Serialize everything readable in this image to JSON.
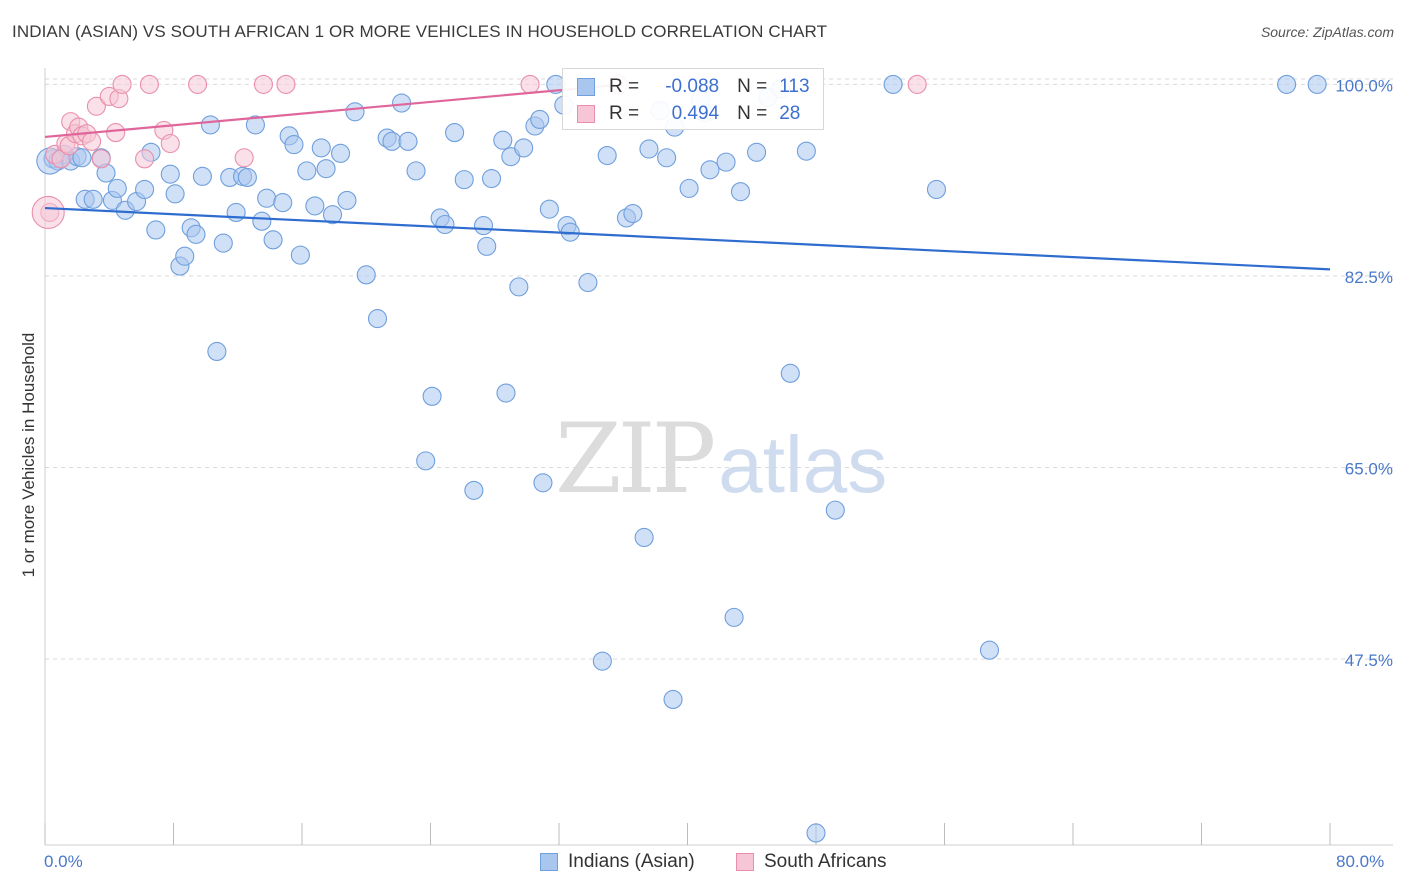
{
  "title": "INDIAN (ASIAN) VS SOUTH AFRICAN 1 OR MORE VEHICLES IN HOUSEHOLD CORRELATION CHART",
  "source": "Source: ZipAtlas.com",
  "watermark": {
    "zip": "ZIP",
    "atlas": "atlas"
  },
  "colors": {
    "blue_fill": "#a9c6ef",
    "blue_stroke": "#6f9fdd",
    "blue_line": "#2e6ccf",
    "pink_fill": "#f6c6d6",
    "pink_stroke": "#ea8fab",
    "pink_line": "#e0659a",
    "grid": "#d9d9d9",
    "axis_text": "#4a78c9"
  },
  "legend": {
    "rows": [
      {
        "r_label": "R =",
        "r_value": "-0.088",
        "n_label": "N =",
        "n_value": "113"
      },
      {
        "r_label": "R =",
        "r_value": "0.494",
        "n_label": "N =",
        "n_value": "28"
      }
    ]
  },
  "bottom_legend": {
    "series1": "Indians (Asian)",
    "series2": "South Africans"
  },
  "chart_data": {
    "type": "scatter",
    "title": "INDIAN (ASIAN) VS SOUTH AFRICAN 1 OR MORE VEHICLES IN HOUSEHOLD CORRELATION CHART",
    "xlabel": "",
    "ylabel": "1 or more Vehicles in Household",
    "xlim": [
      0,
      80
    ],
    "ylim": [
      30.5,
      101.5
    ],
    "x_tick_labels": [
      "0.0%",
      "80.0%"
    ],
    "y_ticks": [
      {
        "value": 100.0,
        "label": "100.0%"
      },
      {
        "value": 82.5,
        "label": "82.5%"
      },
      {
        "value": 65.0,
        "label": "65.0%"
      },
      {
        "value": 47.5,
        "label": "47.5%"
      }
    ],
    "grid": true,
    "series": [
      {
        "name": "Indians (Asian)",
        "color": "#6f9fdd",
        "r": -0.088,
        "n": 113,
        "trend": {
          "x": [
            0,
            80
          ],
          "y": [
            88.7,
            83.1
          ]
        },
        "points": [
          [
            0.5,
            93.2
          ],
          [
            0.8,
            93.0
          ],
          [
            1.2,
            93.6
          ],
          [
            1.6,
            93.0
          ],
          [
            2.0,
            93.4
          ],
          [
            2.3,
            93.3
          ],
          [
            2.5,
            89.5
          ],
          [
            3.0,
            89.5
          ],
          [
            3.5,
            93.3
          ],
          [
            3.8,
            91.9
          ],
          [
            4.2,
            89.4
          ],
          [
            4.5,
            90.5
          ],
          [
            5.0,
            88.5
          ],
          [
            5.7,
            89.3
          ],
          [
            6.2,
            90.4
          ],
          [
            6.6,
            93.8
          ],
          [
            6.9,
            86.7
          ],
          [
            7.8,
            91.8
          ],
          [
            8.1,
            90.0
          ],
          [
            8.4,
            83.4
          ],
          [
            8.7,
            84.3
          ],
          [
            9.1,
            86.9
          ],
          [
            9.4,
            86.3
          ],
          [
            9.8,
            91.6
          ],
          [
            10.3,
            96.3
          ],
          [
            10.7,
            75.6
          ],
          [
            11.1,
            85.5
          ],
          [
            11.5,
            91.5
          ],
          [
            11.9,
            88.3
          ],
          [
            12.3,
            91.6
          ],
          [
            12.6,
            91.5
          ],
          [
            13.1,
            96.3
          ],
          [
            13.5,
            87.5
          ],
          [
            13.8,
            89.6
          ],
          [
            14.2,
            85.8
          ],
          [
            14.8,
            89.2
          ],
          [
            15.2,
            95.3
          ],
          [
            15.5,
            94.5
          ],
          [
            15.9,
            84.4
          ],
          [
            16.3,
            92.1
          ],
          [
            16.8,
            88.9
          ],
          [
            17.2,
            94.2
          ],
          [
            17.5,
            92.3
          ],
          [
            17.9,
            88.1
          ],
          [
            18.4,
            93.7
          ],
          [
            18.8,
            89.4
          ],
          [
            19.3,
            97.5
          ],
          [
            20.0,
            82.6
          ],
          [
            20.7,
            78.6
          ],
          [
            21.3,
            95.1
          ],
          [
            21.6,
            94.8
          ],
          [
            22.2,
            98.3
          ],
          [
            22.6,
            94.8
          ],
          [
            23.1,
            92.1
          ],
          [
            23.7,
            65.6
          ],
          [
            24.1,
            71.5
          ],
          [
            24.6,
            87.8
          ],
          [
            24.9,
            87.2
          ],
          [
            25.5,
            95.6
          ],
          [
            26.1,
            91.3
          ],
          [
            26.7,
            62.9
          ],
          [
            27.3,
            87.1
          ],
          [
            27.5,
            85.2
          ],
          [
            27.8,
            91.4
          ],
          [
            28.5,
            94.9
          ],
          [
            28.7,
            71.8
          ],
          [
            29.0,
            93.4
          ],
          [
            29.5,
            81.5
          ],
          [
            29.8,
            94.2
          ],
          [
            30.5,
            96.2
          ],
          [
            30.8,
            96.8
          ],
          [
            31.0,
            63.6
          ],
          [
            31.4,
            88.6
          ],
          [
            31.8,
            100.0
          ],
          [
            32.3,
            98.1
          ],
          [
            32.5,
            87.1
          ],
          [
            32.7,
            86.5
          ],
          [
            33.8,
            81.9
          ],
          [
            34.7,
            47.3
          ],
          [
            35.0,
            93.5
          ],
          [
            36.2,
            87.8
          ],
          [
            36.6,
            88.2
          ],
          [
            37.3,
            58.6
          ],
          [
            37.6,
            94.1
          ],
          [
            38.3,
            97.6
          ],
          [
            38.7,
            93.3
          ],
          [
            39.2,
            96.1
          ],
          [
            40.1,
            90.5
          ],
          [
            41.1,
            97.4
          ],
          [
            41.4,
            92.2
          ],
          [
            42.4,
            92.9
          ],
          [
            42.9,
            51.3
          ],
          [
            43.3,
            90.2
          ],
          [
            44.3,
            93.8
          ],
          [
            45.0,
            98.8
          ],
          [
            45.8,
            99.6
          ],
          [
            46.4,
            73.6
          ],
          [
            47.4,
            93.9
          ],
          [
            48.0,
            31.6
          ],
          [
            49.2,
            61.1
          ],
          [
            52.8,
            100.0
          ],
          [
            55.5,
            90.4
          ],
          [
            58.8,
            48.3
          ],
          [
            77.3,
            100.0
          ],
          [
            79.2,
            100.0
          ],
          [
            39.1,
            43.8
          ],
          [
            40.8,
            98.6
          ]
        ]
      },
      {
        "name": "South Africans",
        "color": "#ea8fab",
        "r": 0.494,
        "n": 28,
        "trend": {
          "x": [
            0,
            36
          ],
          "y": [
            95.2,
            100.0
          ]
        },
        "points": [
          [
            0.3,
            88.3
          ],
          [
            0.6,
            93.6
          ],
          [
            1.0,
            93.2
          ],
          [
            1.3,
            94.6
          ],
          [
            1.5,
            94.4
          ],
          [
            1.6,
            96.6
          ],
          [
            1.9,
            95.5
          ],
          [
            2.1,
            96.1
          ],
          [
            2.3,
            95.3
          ],
          [
            2.6,
            95.5
          ],
          [
            2.9,
            94.8
          ],
          [
            3.2,
            98.0
          ],
          [
            3.5,
            93.2
          ],
          [
            4.0,
            98.9
          ],
          [
            4.4,
            95.6
          ],
          [
            4.6,
            98.7
          ],
          [
            4.8,
            100.0
          ],
          [
            6.2,
            93.2
          ],
          [
            6.5,
            100.0
          ],
          [
            7.4,
            95.8
          ],
          [
            7.8,
            94.6
          ],
          [
            9.5,
            100.0
          ],
          [
            12.4,
            93.3
          ],
          [
            13.6,
            100.0
          ],
          [
            15.0,
            100.0
          ],
          [
            30.2,
            100.0
          ],
          [
            35.7,
            100.0
          ],
          [
            54.3,
            100.0
          ]
        ]
      }
    ]
  }
}
